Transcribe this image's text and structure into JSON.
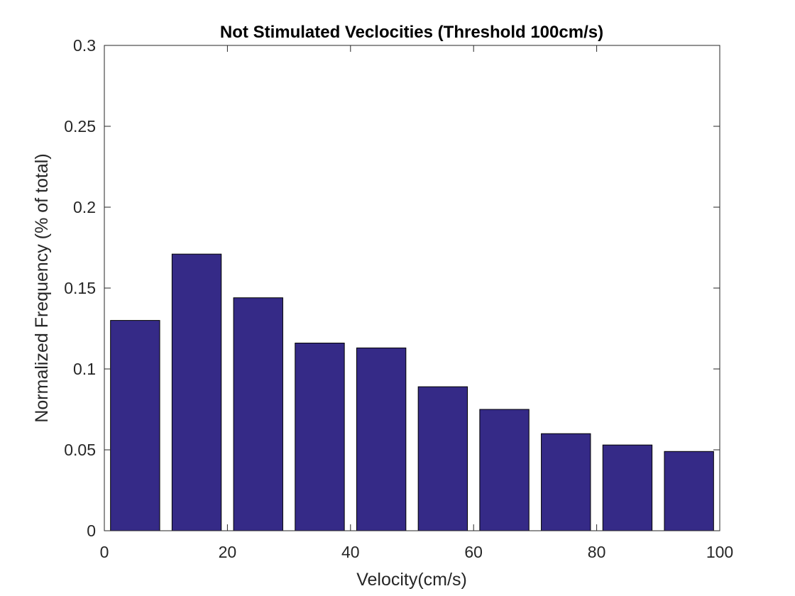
{
  "chart_data": {
    "type": "bar",
    "title": "Not Stimulated Veclocities (Threshold 100cm/s)",
    "xlabel": "Velocity(cm/s)",
    "ylabel": "Normalized Frequency (% of total)",
    "xlim": [
      0,
      100
    ],
    "ylim": [
      0,
      0.3
    ],
    "x_ticks": [
      0,
      20,
      40,
      60,
      80,
      100
    ],
    "x_tick_labels": [
      "0",
      "20",
      "40",
      "60",
      "80",
      "100"
    ],
    "y_ticks": [
      0,
      0.05,
      0.1,
      0.15,
      0.2,
      0.25,
      0.3
    ],
    "y_tick_labels": [
      "0",
      "0.05",
      "0.1",
      "0.15",
      "0.2",
      "0.25",
      "0.3"
    ],
    "bin_centers": [
      5,
      15,
      25,
      35,
      45,
      55,
      65,
      75,
      85,
      95
    ],
    "bin_width": 10,
    "values": [
      0.13,
      0.171,
      0.144,
      0.116,
      0.113,
      0.089,
      0.075,
      0.06,
      0.053,
      0.049
    ],
    "bar_color": "#352a87",
    "bar_edge_color": "#000000",
    "grid": false,
    "legend": "none"
  }
}
